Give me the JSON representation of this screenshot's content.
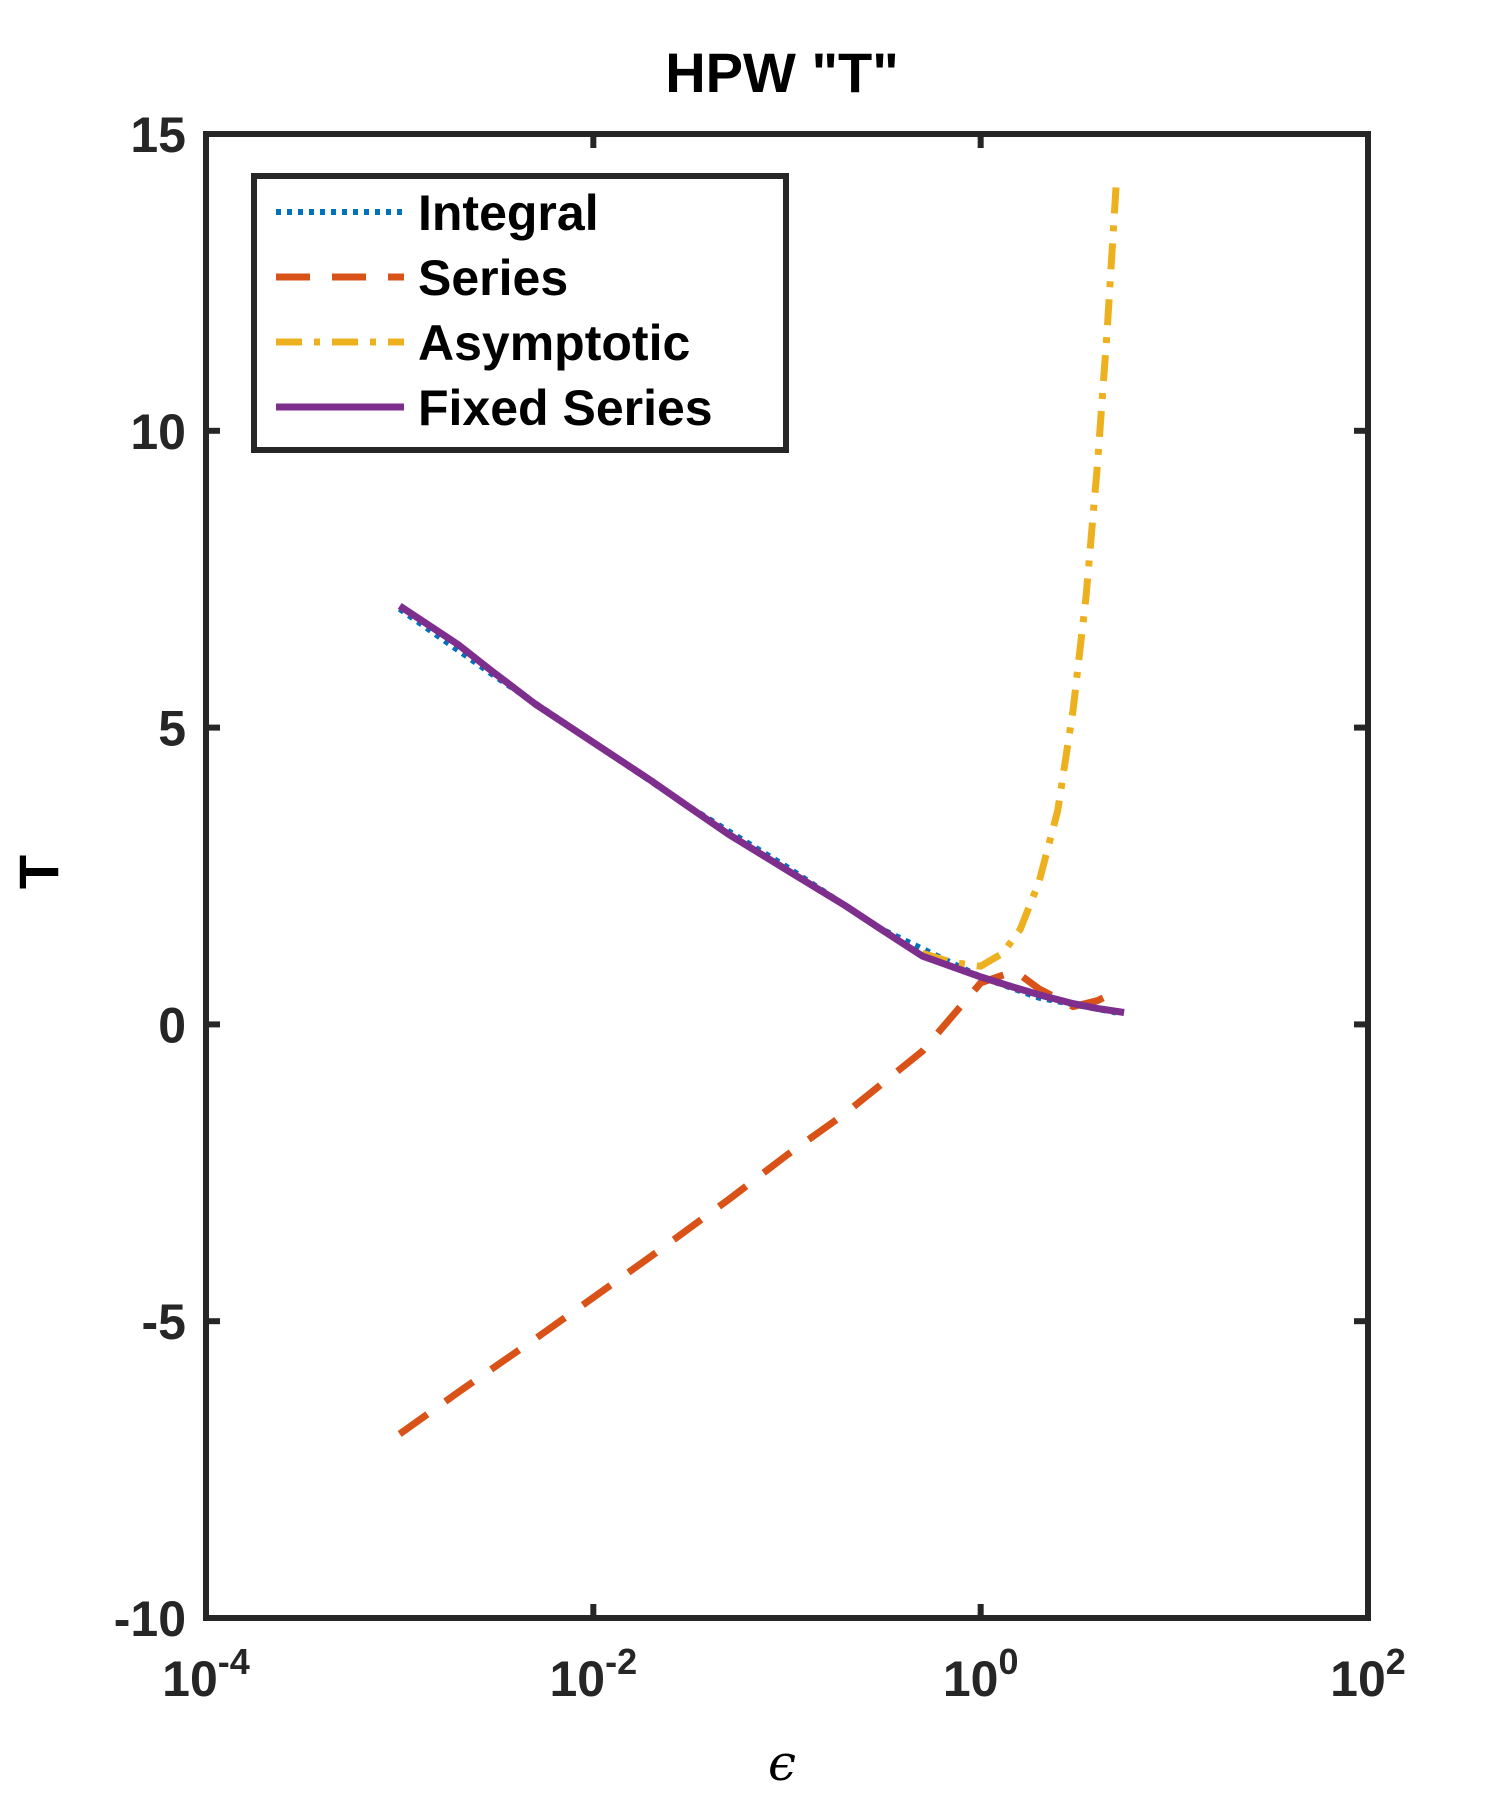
{
  "chart_data": {
    "type": "line",
    "title": "HPW \"T\"",
    "xlabel": "ϵ",
    "ylabel": "T",
    "xscale": "log",
    "xlim": [
      0.0001,
      100
    ],
    "ylim": [
      -10,
      15
    ],
    "x_ticks": [
      {
        "value": 0.0001,
        "base": "10",
        "exp": "-4"
      },
      {
        "value": 0.01,
        "base": "10",
        "exp": "-2"
      },
      {
        "value": 1,
        "base": "10",
        "exp": "0"
      },
      {
        "value": 100,
        "base": "10",
        "exp": "2"
      }
    ],
    "y_ticks": [
      {
        "value": -10,
        "label": "-10"
      },
      {
        "value": -5,
        "label": "-5"
      },
      {
        "value": 0,
        "label": "0"
      },
      {
        "value": 5,
        "label": "5"
      },
      {
        "value": 10,
        "label": "10"
      },
      {
        "value": 15,
        "label": "15"
      }
    ],
    "legend_position": "top-left",
    "series": [
      {
        "name": "Integral",
        "color": "#0072BD",
        "style": "dotted",
        "x": [
          0.001,
          0.003,
          0.01,
          0.03,
          0.1,
          0.3,
          1,
          2,
          5
        ],
        "y": [
          7.0,
          5.9,
          4.75,
          3.7,
          2.65,
          1.62,
          0.8,
          0.45,
          0.2
        ]
      },
      {
        "name": "Series",
        "color": "#D95319",
        "style": "dashed",
        "x": [
          0.001,
          0.002,
          0.005,
          0.01,
          0.02,
          0.05,
          0.1,
          0.2,
          0.5,
          1,
          1.5,
          2,
          3,
          4,
          5
        ],
        "y": [
          -6.9,
          -6.2,
          -5.3,
          -4.6,
          -3.9,
          -2.95,
          -2.2,
          -1.5,
          -0.45,
          0.7,
          0.9,
          0.6,
          0.3,
          0.4,
          0.55
        ]
      },
      {
        "name": "Asymptotic",
        "color": "#EDB120",
        "style": "dashdot",
        "x": [
          0.5,
          0.7,
          1,
          1.3,
          1.6,
          2,
          2.5,
          3,
          3.5,
          4,
          4.5,
          5
        ],
        "y": [
          1.2,
          1.05,
          0.98,
          1.2,
          1.6,
          2.4,
          3.6,
          5.3,
          7.2,
          9.4,
          11.7,
          14.1
        ]
      },
      {
        "name": "Fixed Series",
        "color": "#7E2F8E",
        "style": "solid",
        "x": [
          0.001,
          0.002,
          0.003,
          0.005,
          0.01,
          0.02,
          0.03,
          0.05,
          0.1,
          0.2,
          0.3,
          0.5,
          1,
          1.5,
          2,
          3,
          4,
          5.5
        ],
        "y": [
          7.05,
          6.4,
          5.95,
          5.4,
          4.75,
          4.1,
          3.7,
          3.2,
          2.6,
          2.0,
          1.62,
          1.15,
          0.8,
          0.62,
          0.5,
          0.35,
          0.27,
          0.2
        ]
      }
    ]
  }
}
